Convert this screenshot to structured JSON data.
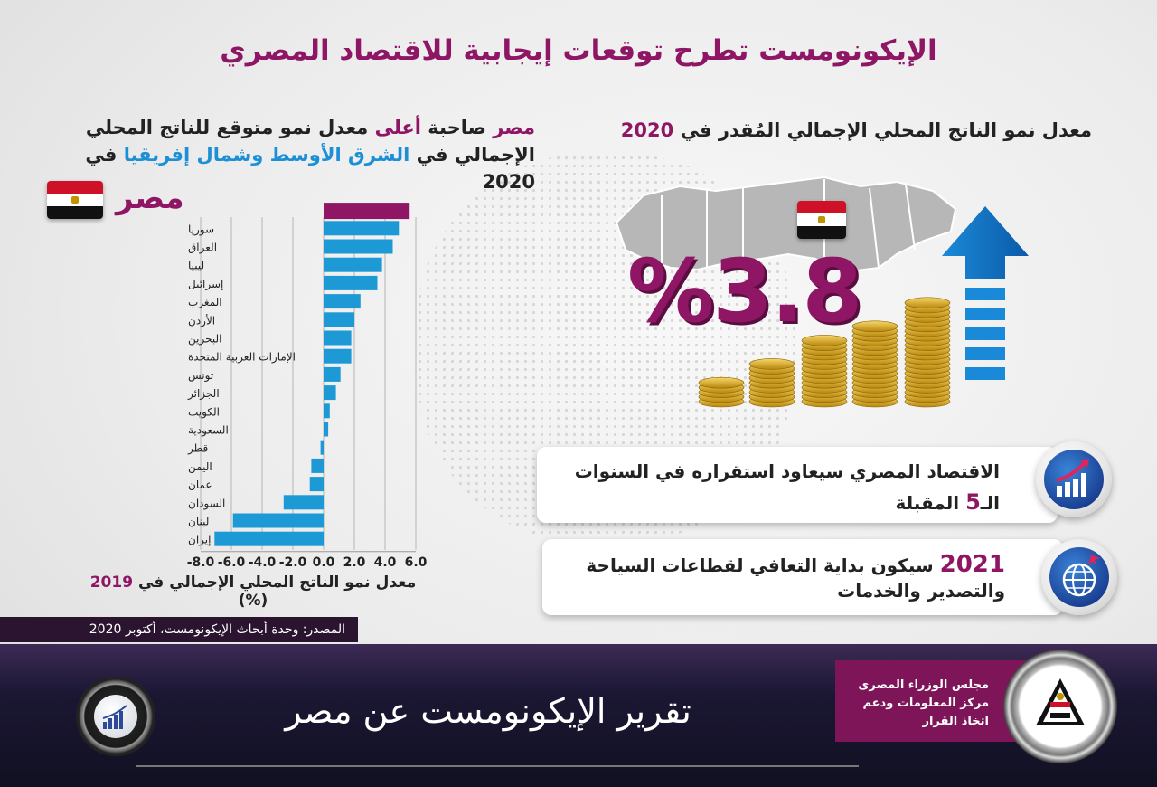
{
  "title": "الإيكونومست تطرح توقعات إيجابية للاقتصاد المصري",
  "left_header": {
    "word1": "مصر",
    "word2": "صاحبة",
    "word3": "أعلى",
    "word4": "معدل نمو متوقع للناتج المحلي",
    "line2a": "الإجمالي في",
    "line2b": "الشرق الأوسط وشمال إفريقيا",
    "line2c": "في 2020"
  },
  "egypt_label": "مصر",
  "chart_data": {
    "type": "bar",
    "orientation": "horizontal",
    "categories": [
      "مصر",
      "سوريا",
      "العراق",
      "ليبيا",
      "إسرائيل",
      "المغرب",
      "الأردن",
      "البحرين",
      "الإمارات العربية المتحدة",
      "تونس",
      "الجزائر",
      "الكويت",
      "السعودية",
      "قطر",
      "اليمن",
      "عمان",
      "السودان",
      "لبنان",
      "إيران"
    ],
    "values": [
      5.6,
      4.9,
      4.5,
      3.8,
      3.5,
      2.4,
      2.0,
      1.8,
      1.8,
      1.1,
      0.8,
      0.4,
      0.3,
      -0.2,
      -0.8,
      -0.9,
      -2.6,
      -5.9,
      -7.1
    ],
    "xticks": [
      "-8.0",
      "-6.0",
      "-4.0",
      "-2.0",
      "0.0",
      "2.0",
      "4.0",
      "6.0"
    ],
    "xlim": [
      -8,
      6
    ],
    "xlabel_text": "معدل نمو الناتج المحلي الإجمالي في",
    "xlabel_year": "2019",
    "xlabel_unit": "(%)",
    "grid": true,
    "colors": {
      "highlight": "#8e1665",
      "bar": "#1d9ad6"
    }
  },
  "source": "المصدر: وحدة أبحاث الإيكونومست، أكتوبر 2020",
  "right_header": {
    "text": "معدل نمو الناتج المحلي الإجمالي المُقدر في",
    "year": "2020"
  },
  "big_value": "%3.8",
  "card1": {
    "line1": "الاقتصاد المصري سيعاود استقراره في السنوات",
    "prefix": "الـ",
    "five": "5",
    "suffix": "المقبلة"
  },
  "card2": {
    "year": "2021",
    "text": "سيكون بداية التعافي لقطاعات السياحة والتصدير والخدمات"
  },
  "footer": {
    "title": "تقرير الإيكونومست عن مصر",
    "cabinet_line1": "مجلس الوزراء المصرى",
    "cabinet_line2": "مركز المعلومات ودعم اتخاذ القرار"
  },
  "icons": [
    "growth-chart-icon",
    "globe-plane-icon",
    "bar-chart-icon",
    "cabinet-logo-icon",
    "coins-icon",
    "up-arrow-icon",
    "egypt-flag-icon"
  ]
}
